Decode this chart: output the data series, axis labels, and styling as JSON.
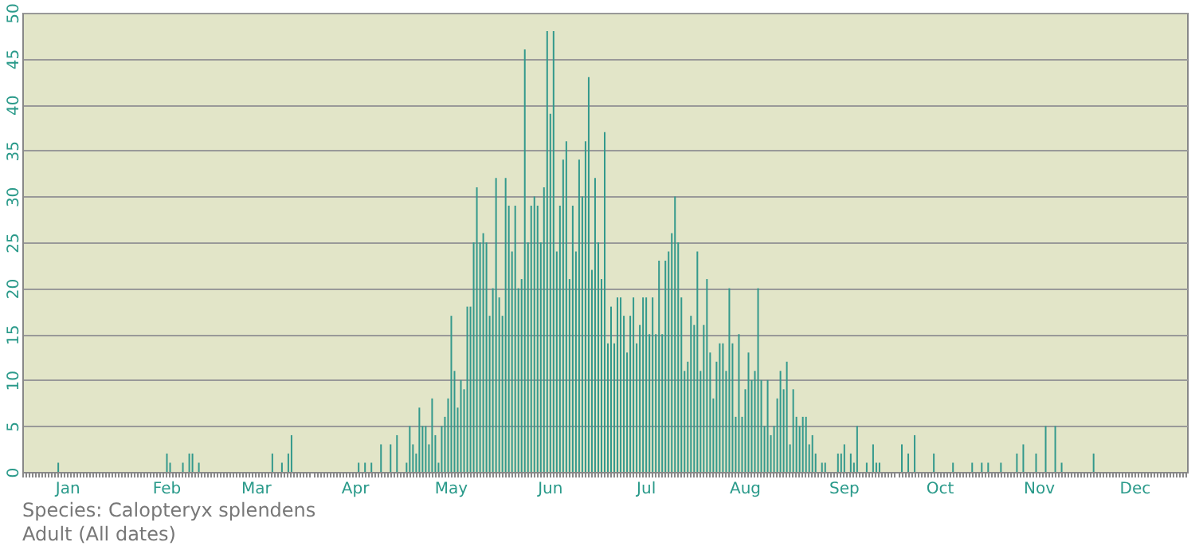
{
  "chart_data": {
    "type": "bar",
    "categories": [
      null,
      null,
      null,
      null,
      null,
      null,
      null,
      null,
      null,
      null,
      null,
      null,
      null,
      null,
      "Jan",
      null,
      null,
      null,
      null,
      null,
      null,
      null,
      null,
      null,
      null,
      null,
      null,
      null,
      null,
      null,
      null,
      null,
      null,
      null,
      null,
      null,
      null,
      null,
      null,
      null,
      null,
      null,
      null,
      null,
      null,
      "Feb",
      null,
      null,
      null,
      null,
      null,
      null,
      null,
      null,
      null,
      null,
      null,
      null,
      null,
      null,
      null,
      null,
      null,
      null,
      null,
      null,
      null,
      null,
      null,
      null,
      null,
      null,
      null,
      "Mar",
      null,
      null,
      null,
      null,
      null,
      null,
      null,
      null,
      null,
      null,
      null,
      null,
      null,
      null,
      null,
      null,
      null,
      null,
      null,
      null,
      null,
      null,
      null,
      null,
      null,
      null,
      null,
      null,
      null,
      null,
      "Apr",
      null,
      null,
      null,
      null,
      null,
      null,
      null,
      null,
      null,
      null,
      null,
      null,
      null,
      null,
      null,
      null,
      null,
      null,
      null,
      null,
      null,
      null,
      null,
      null,
      null,
      null,
      null,
      null,
      null,
      "May",
      null,
      null,
      null,
      null,
      null,
      null,
      null,
      null,
      null,
      null,
      null,
      null,
      null,
      null,
      null,
      null,
      null,
      null,
      null,
      null,
      null,
      null,
      null,
      null,
      null,
      null,
      null,
      null,
      null,
      null,
      "Jun",
      null,
      null,
      null,
      null,
      null,
      null,
      null,
      null,
      null,
      null,
      null,
      null,
      null,
      null,
      null,
      null,
      null,
      null,
      null,
      null,
      null,
      null,
      null,
      null,
      null,
      null,
      null,
      null,
      null,
      "Jul",
      null,
      null,
      null,
      null,
      null,
      null,
      null,
      null,
      null,
      null,
      null,
      null,
      null,
      null,
      null,
      null,
      null,
      null,
      null,
      null,
      null,
      null,
      null,
      null,
      null,
      null,
      null,
      null,
      null,
      null,
      "Aug",
      null,
      null,
      null,
      null,
      null,
      null,
      null,
      null,
      null,
      null,
      null,
      null,
      null,
      null,
      null,
      null,
      null,
      null,
      null,
      null,
      null,
      null,
      null,
      null,
      null,
      null,
      null,
      null,
      null,
      null,
      "Sep",
      null,
      null,
      null,
      null,
      null,
      null,
      null,
      null,
      null,
      null,
      null,
      null,
      null,
      null,
      null,
      null,
      null,
      null,
      null,
      null,
      null,
      null,
      null,
      null,
      null,
      null,
      null,
      null,
      null,
      "Oct",
      null,
      null,
      null,
      null,
      null,
      null,
      null,
      null,
      null,
      null,
      null,
      null,
      null,
      null,
      null,
      null,
      null,
      null,
      null,
      null,
      null,
      null,
      null,
      null,
      null,
      null,
      null,
      null,
      null,
      null,
      "Nov",
      null,
      null,
      null,
      null,
      null,
      null,
      null,
      null,
      null,
      null,
      null,
      null,
      null,
      null,
      null,
      null,
      null,
      null,
      null,
      null,
      null,
      null,
      null,
      null,
      null,
      null,
      null,
      null,
      null,
      "Dec",
      null,
      null,
      null,
      null,
      null,
      null,
      null,
      null,
      null,
      null,
      null,
      null,
      null,
      null,
      null,
      null
    ],
    "values": [
      0,
      0,
      0,
      0,
      0,
      0,
      0,
      0,
      0,
      0,
      0,
      1,
      0,
      0,
      0,
      0,
      0,
      0,
      0,
      0,
      0,
      0,
      0,
      0,
      0,
      0,
      0,
      0,
      0,
      0,
      0,
      0,
      0,
      0,
      0,
      0,
      0,
      0,
      0,
      0,
      0,
      0,
      0,
      0,
      0,
      2,
      1,
      0,
      0,
      0,
      1,
      0,
      2,
      2,
      0,
      1,
      0,
      0,
      0,
      0,
      0,
      0,
      0,
      0,
      0,
      0,
      0,
      0,
      0,
      0,
      0,
      0,
      0,
      0,
      0,
      0,
      0,
      0,
      2,
      0,
      0,
      1,
      0,
      2,
      4,
      0,
      0,
      0,
      0,
      0,
      0,
      0,
      0,
      0,
      0,
      0,
      0,
      0,
      0,
      0,
      0,
      0,
      0,
      0,
      0,
      1,
      0,
      1,
      0,
      1,
      0,
      0,
      3,
      0,
      0,
      3,
      0,
      4,
      0,
      0,
      1,
      5,
      3,
      2,
      7,
      5,
      5,
      3,
      8,
      4,
      1,
      5,
      6,
      8,
      17,
      11,
      7,
      10,
      9,
      18,
      18,
      25,
      31,
      25,
      26,
      25,
      17,
      20,
      32,
      19,
      17,
      32,
      29,
      24,
      29,
      20,
      21,
      46,
      25,
      29,
      30,
      29,
      25,
      31,
      48,
      39,
      48,
      24,
      29,
      34,
      36,
      21,
      29,
      24,
      34,
      30,
      36,
      43,
      22,
      32,
      25,
      21,
      37,
      14,
      18,
      14,
      19,
      19,
      17,
      13,
      17,
      19,
      14,
      16,
      19,
      19,
      15,
      19,
      15,
      23,
      15,
      23,
      24,
      26,
      30,
      25,
      19,
      11,
      12,
      17,
      16,
      24,
      11,
      16,
      21,
      13,
      8,
      12,
      14,
      14,
      11,
      20,
      14,
      6,
      15,
      6,
      9,
      13,
      10,
      11,
      20,
      10,
      5,
      10,
      4,
      5,
      8,
      11,
      9,
      12,
      3,
      9,
      6,
      5,
      6,
      6,
      3,
      4,
      2,
      0,
      1,
      1,
      0,
      0,
      0,
      2,
      2,
      3,
      0,
      2,
      1,
      5,
      0,
      0,
      1,
      0,
      3,
      1,
      1,
      0,
      0,
      0,
      0,
      0,
      0,
      3,
      0,
      2,
      0,
      4,
      0,
      0,
      0,
      0,
      0,
      2,
      0,
      0,
      0,
      0,
      0,
      1,
      0,
      0,
      0,
      0,
      0,
      1,
      0,
      0,
      1,
      0,
      1,
      0,
      0,
      0,
      1,
      0,
      0,
      0,
      0,
      2,
      0,
      3,
      0,
      0,
      0,
      2,
      0,
      0,
      5,
      0,
      0,
      5,
      0,
      1,
      0,
      0,
      0,
      0,
      0,
      0,
      0,
      0,
      0,
      2,
      0,
      0,
      0,
      0,
      0,
      0,
      0,
      0,
      0,
      0,
      0,
      0,
      0,
      0,
      0,
      0,
      0,
      0,
      0,
      0,
      0,
      0,
      0,
      0,
      0,
      0,
      0,
      0,
      0
    ],
    "color": "#33998c",
    "ylim": [
      0,
      50
    ],
    "yticks": [
      0,
      5,
      10,
      15,
      20,
      25,
      30,
      35,
      40,
      45,
      50
    ],
    "grid": "y",
    "annotations": [
      "Species: Calopteryx splendens",
      "Adult (All dates)"
    ]
  }
}
